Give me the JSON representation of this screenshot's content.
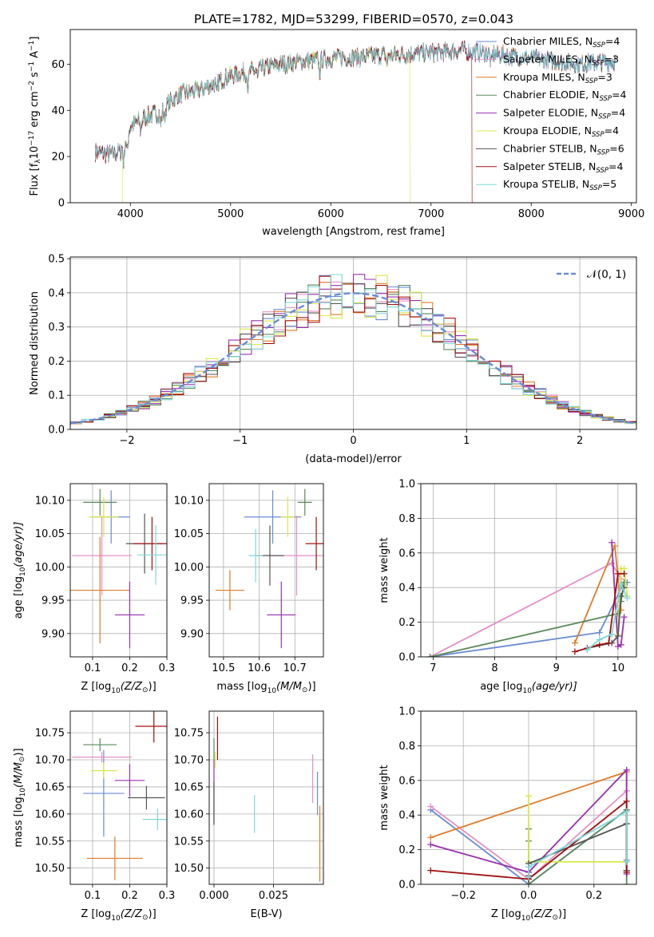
{
  "figure_title": "PLATE=1782, MJD=53299, FIBERID=0570, z=0.043",
  "fit_colors": {
    "Chabrier MILES": "#6a8bd6",
    "Salpeter MILES": "#e58fc6",
    "Kroupa MILES": "#e07b28",
    "Chabrier ELODIE": "#5a8a5a",
    "Salpeter ELODIE": "#9a2fb0",
    "Kroupa ELODIE": "#d9e84a",
    "Chabrier STELIB": "#555555",
    "Salpeter STELIB": "#a01010",
    "Kroupa STELIB": "#7fd8d8"
  },
  "chart_data": [
    {
      "id": "spectrum",
      "type": "line",
      "xlabel": "wavelength [Angstrom, rest frame]",
      "ylabel": "Flux [f_λ 10^-17 erg cm^-2 s^-1 A^-1]",
      "xlim": [
        3400,
        9050
      ],
      "ylim": [
        0,
        75
      ],
      "xticks": [
        4000,
        5000,
        6000,
        7000,
        8000,
        9000
      ],
      "yticks": [
        0,
        20,
        40,
        60
      ],
      "grid": false,
      "legend_position": "upper-right",
      "legend": [
        {
          "name": "Chabrier MILES",
          "label": "Chabrier MILES, N",
          "sub": "SSP",
          "n": "=4"
        },
        {
          "name": "Salpeter MILES",
          "label": "Salpeter MILES, N",
          "sub": "SSP",
          "n": "=3"
        },
        {
          "name": "Kroupa MILES",
          "label": "Kroupa MILES, N",
          "sub": "SSP",
          "n": "=3"
        },
        {
          "name": "Chabrier ELODIE",
          "label": "Chabrier ELODIE, N",
          "sub": "SSP",
          "n": "=4"
        },
        {
          "name": "Salpeter ELODIE",
          "label": "Salpeter ELODIE, N",
          "sub": "SSP",
          "n": "=4"
        },
        {
          "name": "Kroupa ELODIE",
          "label": "Kroupa ELODIE, N",
          "sub": "SSP",
          "n": "=4"
        },
        {
          "name": "Chabrier STELIB",
          "label": "Chabrier STELIB, N",
          "sub": "SSP",
          "n": "=6"
        },
        {
          "name": "Salpeter STELIB",
          "label": "Salpeter STELIB, N",
          "sub": "SSP",
          "n": "=4"
        },
        {
          "name": "Kroupa STELIB",
          "label": "Kroupa STELIB, N",
          "sub": "SSP",
          "n": "=5"
        }
      ],
      "continuum": [
        [
          3650,
          22
        ],
        [
          3800,
          21
        ],
        [
          3900,
          22
        ],
        [
          4000,
          33
        ],
        [
          4100,
          36
        ],
        [
          4200,
          38
        ],
        [
          4300,
          39
        ],
        [
          4400,
          44
        ],
        [
          4500,
          47
        ],
        [
          4600,
          48
        ],
        [
          4700,
          49
        ],
        [
          4800,
          51
        ],
        [
          4900,
          53
        ],
        [
          5000,
          55
        ],
        [
          5100,
          56
        ],
        [
          5200,
          57
        ],
        [
          5300,
          58
        ],
        [
          5500,
          60
        ],
        [
          5700,
          61
        ],
        [
          5900,
          62
        ],
        [
          6100,
          63
        ],
        [
          6300,
          63
        ],
        [
          6500,
          64
        ],
        [
          6700,
          64
        ],
        [
          6900,
          65
        ],
        [
          7100,
          65
        ],
        [
          7300,
          66
        ],
        [
          7500,
          65
        ],
        [
          7700,
          64
        ],
        [
          7900,
          63
        ],
        [
          8100,
          62
        ],
        [
          8300,
          61
        ],
        [
          8500,
          60
        ],
        [
          8700,
          61
        ],
        [
          8840,
          61
        ]
      ],
      "absorption_lines": [
        [
          3934,
          8
        ],
        [
          3969,
          8
        ],
        [
          4102,
          5
        ],
        [
          4304,
          6
        ],
        [
          4340,
          5
        ],
        [
          4861,
          6
        ],
        [
          5175,
          7
        ],
        [
          5270,
          4
        ],
        [
          5890,
          6
        ],
        [
          6563,
          4
        ],
        [
          7600,
          5
        ]
      ],
      "model_ends": [
        {
          "series": "Kroupa ELODIE",
          "x_end": 6790,
          "x_start": 3920
        },
        {
          "series": "Salpeter STELIB",
          "x_end": 7410
        },
        {
          "series": "Chabrier STELIB",
          "x_end": 8840
        }
      ]
    },
    {
      "id": "residuals",
      "type": "step",
      "xlabel": "(data-model)/error",
      "ylabel": "Normed distribution",
      "xlim": [
        -2.5,
        2.5
      ],
      "ylim": [
        0,
        0.505
      ],
      "xticks": [
        -2,
        -1,
        0,
        1,
        2
      ],
      "yticks": [
        0.0,
        0.1,
        0.2,
        0.3,
        0.4,
        0.5
      ],
      "grid": true,
      "legend_position": "upper-right",
      "legend_label": "𝒩(0, 1)",
      "reference_curve": "normal(0,1)",
      "bin_width": 0.1
    },
    {
      "id": "age-vs-Z",
      "type": "errorbar",
      "xlabel_main": "Z [log",
      "xlabel_sub": "10",
      "xlabel_tail": "(Z/Z",
      "xlabel_end": ")]",
      "ylabel_main": "age  [log",
      "ylabel_sub": "10",
      "ylabel_tail": "(age/yr)]",
      "xlim": [
        0.04,
        0.3
      ],
      "ylim": [
        9.865,
        10.125
      ],
      "xticks": [
        0.1,
        0.2,
        0.3
      ],
      "yticks": [
        9.9,
        9.95,
        10.0,
        10.05,
        10.1
      ],
      "points": [
        {
          "series": "Chabrier MILES",
          "x": 0.15,
          "xerr": 0.05,
          "y": 10.075,
          "yerr": 0.04
        },
        {
          "series": "Salpeter MILES",
          "x": 0.125,
          "xerr": 0.08,
          "y": 10.017,
          "yerr": 0.06
        },
        {
          "series": "Kroupa MILES",
          "x": 0.12,
          "xerr": 0.08,
          "y": 9.965,
          "yerr": 0.08
        },
        {
          "series": "Chabrier ELODIE",
          "x": 0.12,
          "xerr": 0.045,
          "y": 10.097,
          "yerr": 0.02
        },
        {
          "series": "Salpeter ELODIE",
          "x": 0.2,
          "xerr": 0.04,
          "y": 9.928,
          "yerr": 0.05
        },
        {
          "series": "Kroupa ELODIE",
          "x": 0.13,
          "xerr": 0.04,
          "y": 10.075,
          "yerr": 0.03
        },
        {
          "series": "Chabrier STELIB",
          "x": 0.24,
          "xerr": 0.05,
          "y": 10.035,
          "yerr": 0.045
        },
        {
          "series": "Salpeter STELIB",
          "x": 0.26,
          "xerr": 0.05,
          "y": 10.035,
          "yerr": 0.04
        },
        {
          "series": "Kroupa STELIB",
          "x": 0.27,
          "xerr": 0.05,
          "y": 10.018,
          "yerr": 0.045
        }
      ]
    },
    {
      "id": "age-vs-mass",
      "type": "errorbar",
      "xlabel_main": "mass [log",
      "xlabel_sub": "10",
      "xlabel_tail": "(M/M",
      "xlabel_end": ")]",
      "xlim": [
        10.46,
        10.78
      ],
      "ylim": [
        9.865,
        10.125
      ],
      "xticks": [
        10.5,
        10.6,
        10.7
      ],
      "yticks": [
        9.9,
        9.95,
        10.0,
        10.05,
        10.1
      ],
      "points": [
        {
          "series": "Chabrier MILES",
          "x": 10.638,
          "xerr": 0.08,
          "y": 10.075,
          "yerr": 0.04
        },
        {
          "series": "Salpeter MILES",
          "x": 10.705,
          "xerr": 0.08,
          "y": 10.017,
          "yerr": 0.06
        },
        {
          "series": "Kroupa MILES",
          "x": 10.518,
          "xerr": 0.04,
          "y": 9.965,
          "yerr": 0.03
        },
        {
          "series": "Chabrier ELODIE",
          "x": 10.728,
          "xerr": 0.02,
          "y": 10.097,
          "yerr": 0.02
        },
        {
          "series": "Salpeter ELODIE",
          "x": 10.662,
          "xerr": 0.04,
          "y": 9.928,
          "yerr": 0.05
        },
        {
          "series": "Kroupa ELODIE",
          "x": 10.68,
          "xerr": 0.02,
          "y": 10.075,
          "yerr": 0.03
        },
        {
          "series": "Chabrier STELIB",
          "x": 10.63,
          "xerr": 0.04,
          "y": 10.017,
          "yerr": 0.045
        },
        {
          "series": "Salpeter STELIB",
          "x": 10.76,
          "xerr": 0.03,
          "y": 10.035,
          "yerr": 0.04
        },
        {
          "series": "Kroupa STELIB",
          "x": 10.59,
          "xerr": 0.02,
          "y": 10.017,
          "yerr": 0.04
        }
      ]
    },
    {
      "id": "weight-vs-age",
      "type": "line",
      "xlabel_main": "age  [log",
      "xlabel_sub": "10",
      "xlabel_tail": "(age/yr)]",
      "ylabel": "mass weight",
      "xlim": [
        6.8,
        10.3
      ],
      "ylim": [
        0,
        1
      ],
      "xticks": [
        7,
        8,
        9,
        10
      ],
      "yticks": [
        0.0,
        0.2,
        0.4,
        0.6,
        0.8,
        1.0
      ],
      "grid": true,
      "series": [
        {
          "series": "Chabrier MILES",
          "x": [
            6.95,
            9.7,
            10.1,
            10.15
          ],
          "y": [
            0.0,
            0.14,
            0.43,
            0.43
          ]
        },
        {
          "series": "Salpeter MILES",
          "x": [
            6.95,
            9.9,
            10.05
          ],
          "y": [
            0.0,
            0.54,
            0.45
          ]
        },
        {
          "series": "Kroupa MILES",
          "x": [
            9.3,
            9.95,
            10.05
          ],
          "y": [
            0.08,
            0.64,
            0.27
          ]
        },
        {
          "series": "Chabrier ELODIE",
          "x": [
            6.95,
            10.0,
            10.05,
            10.1
          ],
          "y": [
            0.0,
            0.25,
            0.32,
            0.43
          ]
        },
        {
          "series": "Salpeter ELODIE",
          "x": [
            9.9,
            10.0,
            10.05,
            10.1
          ],
          "y": [
            0.66,
            0.06,
            0.07,
            0.23
          ]
        },
        {
          "series": "Kroupa ELODIE",
          "x": [
            10.0,
            10.05,
            10.1,
            10.15
          ],
          "y": [
            0.13,
            0.51,
            0.51,
            0.35
          ]
        },
        {
          "series": "Chabrier STELIB",
          "x": [
            9.5,
            9.9,
            10.0,
            10.05,
            10.1
          ],
          "y": [
            0.05,
            0.08,
            0.12,
            0.35,
            0.4
          ]
        },
        {
          "series": "Salpeter STELIB",
          "x": [
            9.3,
            9.7,
            9.85,
            10.0,
            10.1
          ],
          "y": [
            0.03,
            0.07,
            0.08,
            0.48,
            0.48
          ]
        },
        {
          "series": "Kroupa STELIB",
          "x": [
            9.5,
            9.7,
            9.9,
            10.05,
            10.15
          ],
          "y": [
            0.04,
            0.1,
            0.13,
            0.42,
            0.34
          ]
        }
      ]
    },
    {
      "id": "mass-vs-Z",
      "type": "errorbar",
      "xlabel_main": "Z [log",
      "xlabel_sub": "10",
      "xlabel_tail": "(Z/Z",
      "xlabel_end": ")]",
      "ylabel_main": "mass [log",
      "ylabel_sub": "10",
      "ylabel_tail": "(M/M",
      "ylabel_end": ")]",
      "xlim": [
        0.04,
        0.3
      ],
      "ylim": [
        10.47,
        10.79
      ],
      "xticks": [
        0.1,
        0.2,
        0.3
      ],
      "yticks": [
        10.5,
        10.55,
        10.6,
        10.65,
        10.7,
        10.75
      ],
      "points": [
        {
          "series": "Chabrier MILES",
          "x": 0.13,
          "xerr": 0.055,
          "y": 10.638,
          "yerr": 0.08
        },
        {
          "series": "Salpeter MILES",
          "x": 0.125,
          "xerr": 0.08,
          "y": 10.705,
          "yerr": 0.01
        },
        {
          "series": "Kroupa MILES",
          "x": 0.16,
          "xerr": 0.075,
          "y": 10.518,
          "yerr": 0.04
        },
        {
          "series": "Chabrier ELODIE",
          "x": 0.12,
          "xerr": 0.045,
          "y": 10.728,
          "yerr": 0.012
        },
        {
          "series": "Salpeter ELODIE",
          "x": 0.2,
          "xerr": 0.04,
          "y": 10.662,
          "yerr": 0.03
        },
        {
          "series": "Kroupa ELODIE",
          "x": 0.13,
          "xerr": 0.035,
          "y": 10.68,
          "yerr": 0.015
        },
        {
          "series": "Chabrier STELIB",
          "x": 0.245,
          "xerr": 0.05,
          "y": 10.63,
          "yerr": 0.022
        },
        {
          "series": "Salpeter STELIB",
          "x": 0.265,
          "xerr": 0.05,
          "y": 10.762,
          "yerr": 0.03
        },
        {
          "series": "Kroupa STELIB",
          "x": 0.275,
          "xerr": 0.04,
          "y": 10.59,
          "yerr": 0.02
        }
      ]
    },
    {
      "id": "mass-vs-EBV",
      "type": "errorbar",
      "xlabel": "E(B-V)",
      "xlim": [
        -0.002,
        0.046
      ],
      "ylim": [
        10.47,
        10.79
      ],
      "xticks": [
        0.0,
        0.025
      ],
      "yticks": [
        10.5,
        10.55,
        10.6,
        10.65,
        10.7,
        10.75
      ],
      "points": [
        {
          "series": "Chabrier MILES",
          "x": 0.0435,
          "xerr": 0.0,
          "y": 10.638,
          "yerr": 0.04
        },
        {
          "series": "Salpeter MILES",
          "x": 0.0415,
          "xerr": 0.0,
          "y": 10.665,
          "yerr": 0.045
        },
        {
          "series": "Kroupa MILES",
          "x": 0.0445,
          "xerr": 0.0,
          "y": 10.545,
          "yerr": 0.07
        },
        {
          "series": "Chabrier ELODIE",
          "x": 0.0,
          "xerr": 0.0,
          "y": 10.72,
          "yerr": 0.02
        },
        {
          "series": "Salpeter ELODIE",
          "x": 0.0,
          "xerr": 0.0,
          "y": 10.64,
          "yerr": 0.06
        },
        {
          "series": "Kroupa ELODIE",
          "x": 0.0005,
          "xerr": 0.0,
          "y": 10.7,
          "yerr": 0.015
        },
        {
          "series": "Chabrier STELIB",
          "x": 0.0,
          "xerr": 0.0,
          "y": 10.62,
          "yerr": 0.04
        },
        {
          "series": "Salpeter STELIB",
          "x": 0.0015,
          "xerr": 0.0,
          "y": 10.74,
          "yerr": 0.04
        },
        {
          "series": "Kroupa STELIB",
          "x": 0.017,
          "xerr": 0.0,
          "y": 10.6,
          "yerr": 0.035
        }
      ]
    },
    {
      "id": "weight-vs-Z",
      "type": "line",
      "xlabel_main": "Z [log",
      "xlabel_sub": "10",
      "xlabel_tail": "(Z/Z",
      "xlabel_end": ")]",
      "ylabel": "mass weight",
      "xlim": [
        -0.33,
        0.33
      ],
      "ylim": [
        0,
        1
      ],
      "xticks": [
        -0.2,
        0.0,
        0.2
      ],
      "yticks": [
        0.0,
        0.2,
        0.4,
        0.6,
        0.8,
        1.0
      ],
      "grid": true,
      "series": [
        {
          "series": "Chabrier MILES",
          "x": [
            -0.3,
            0.0,
            0.3,
            0.3
          ],
          "y": [
            0.43,
            0.0,
            0.43,
            0.14
          ]
        },
        {
          "series": "Salpeter MILES",
          "x": [
            -0.3,
            0.0,
            0.3
          ],
          "y": [
            0.45,
            0.03,
            0.54
          ]
        },
        {
          "series": "Kroupa MILES",
          "x": [
            -0.3,
            0.3,
            0.3
          ],
          "y": [
            0.27,
            0.65,
            0.08
          ]
        },
        {
          "series": "Chabrier ELODIE",
          "x": [
            0.0,
            0.0,
            0.0,
            0.3,
            0.3
          ],
          "y": [
            0.32,
            0.25,
            0.0,
            0.43,
            0.0
          ]
        },
        {
          "series": "Salpeter ELODIE",
          "x": [
            -0.3,
            0.0,
            0.3,
            0.3
          ],
          "y": [
            0.23,
            0.07,
            0.66,
            0.06
          ]
        },
        {
          "series": "Kroupa ELODIE",
          "x": [
            0.0,
            0.0,
            0.3,
            0.3
          ],
          "y": [
            0.51,
            0.13,
            0.13,
            0.35
          ]
        },
        {
          "series": "Chabrier STELIB",
          "x": [
            0.0,
            0.0,
            0.3,
            0.3
          ],
          "y": [
            0.05,
            0.12,
            0.35,
            0.08
          ]
        },
        {
          "series": "Salpeter STELIB",
          "x": [
            -0.3,
            0.0,
            0.3,
            0.3
          ],
          "y": [
            0.08,
            0.03,
            0.48,
            0.07
          ]
        },
        {
          "series": "Kroupa STELIB",
          "x": [
            0.0,
            0.0,
            0.3,
            0.3
          ],
          "y": [
            0.04,
            0.1,
            0.42,
            0.13
          ]
        }
      ]
    }
  ]
}
